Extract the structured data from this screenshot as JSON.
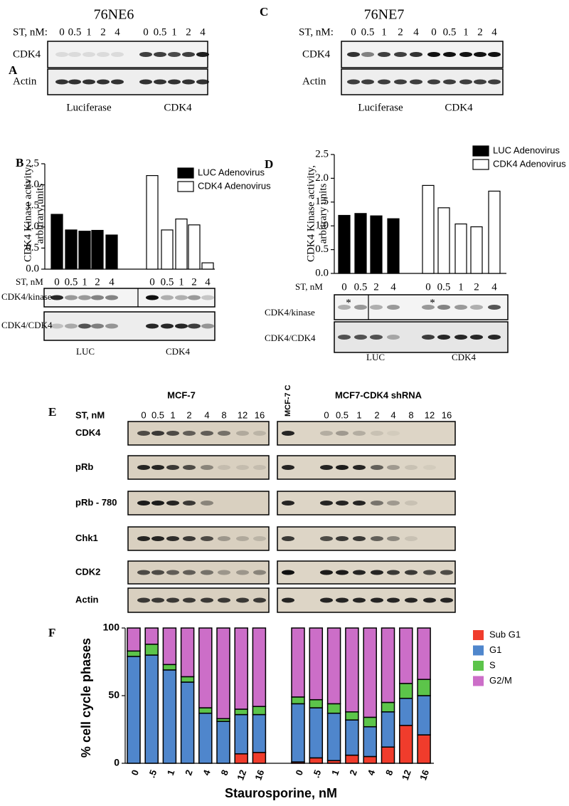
{
  "blots": {
    "A": {
      "label": "A",
      "title": "76NE6",
      "st_label": "ST, nM:",
      "lanes": [
        "0",
        "0.5",
        "1",
        "2",
        "4",
        "0",
        "0.5",
        "1",
        "2",
        "4"
      ],
      "rows": [
        "CDK4",
        "Actin"
      ],
      "groups": [
        "Luciferase",
        "CDK4"
      ]
    },
    "C": {
      "label": "C",
      "title": "76NE7",
      "st_label": "ST, nM:",
      "lanes": [
        "0",
        "0.5",
        "1",
        "2",
        "4",
        "0",
        "0.5",
        "1",
        "2",
        "4"
      ],
      "rows": [
        "CDK4",
        "Actin"
      ],
      "groups": [
        "Luciferase",
        "CDK4"
      ]
    },
    "B": {
      "rows": [
        "CDK4/kinase",
        "CDK4/CDK4"
      ],
      "groups": [
        "LUC",
        "CDK4"
      ]
    },
    "D": {
      "rows": [
        "CDK4/kinase",
        "CDK4/CDK4"
      ],
      "groups": [
        "LUC",
        "CDK4"
      ],
      "marks": [
        "*",
        "*"
      ]
    },
    "E": {
      "label": "E",
      "groups": [
        "MCF-7",
        "MCF7-CDK4 shRNA"
      ],
      "control": "MCF-7 C",
      "st_label": "ST, nM",
      "lanes": [
        "0",
        "0.5",
        "1",
        "2",
        "4",
        "8",
        "12",
        "16"
      ],
      "lanes_right": [
        "0",
        "0.5",
        "1",
        "2",
        "4",
        "8",
        "12",
        "16"
      ],
      "rows": [
        "CDK4",
        "pRb",
        "pRb - 780",
        "Chk1",
        "CDK2",
        "Actin"
      ]
    }
  },
  "chart_data": [
    {
      "type": "bar",
      "label": "B",
      "y_label": [
        "CDK4 Kinase activity,",
        "arbitrary units"
      ],
      "x_label": "ST, nM",
      "categories": [
        "0",
        "0.5",
        "1",
        "2",
        "4",
        "0",
        "0.5",
        "1",
        "2",
        "4"
      ],
      "series": [
        {
          "name": "LUC Adenovirus",
          "color": "#000000",
          "values": [
            1.3,
            0.93,
            0.9,
            0.92,
            0.81,
            null,
            null,
            null,
            null,
            null
          ]
        },
        {
          "name": "CDK4 Adenovirus",
          "color": "#ffffff",
          "values": [
            null,
            null,
            null,
            null,
            null,
            2.22,
            0.93,
            1.19,
            1.05,
            0.15
          ]
        }
      ],
      "ylim": [
        0,
        2.5
      ],
      "yticks": [
        {
          "value": 0,
          "label": "0.0"
        },
        0.5,
        {
          "value": 1,
          "label": "1.0"
        },
        1.5,
        {
          "value": 2,
          "label": "2.0"
        },
        2.5
      ]
    },
    {
      "type": "bar",
      "label": "D",
      "y_label": [
        "CDK4 Kinase activity,",
        "arbitrary units"
      ],
      "x_label": "ST, nM",
      "categories": [
        "0",
        "0.5",
        "2",
        "4",
        "0",
        "0.5",
        "1",
        "2",
        "4"
      ],
      "series": [
        {
          "name": "LUC Adenovirus",
          "color": "#000000",
          "values": [
            1.22,
            1.26,
            1.21,
            1.15,
            null,
            null,
            null,
            null,
            null
          ]
        },
        {
          "name": "CDK4 Adenovirus",
          "color": "#ffffff",
          "values": [
            null,
            null,
            null,
            null,
            1.85,
            1.38,
            1.04,
            0.98,
            1.73
          ]
        }
      ],
      "ylim": [
        0,
        2.5
      ],
      "yticks": [
        {
          "value": 0,
          "label": "0.0"
        },
        0.5,
        {
          "value": 1,
          "label": "1.0"
        },
        1.5,
        {
          "value": 2,
          "label": "2.0"
        },
        2.5
      ]
    },
    {
      "type": "stacked_bar",
      "label": "F",
      "y_label": "% cell cycle phases",
      "x_label": "Staurosporine, nM",
      "categories": [
        "0",
        ".5",
        "1",
        "2",
        "4",
        "8",
        "12",
        "16",
        "0",
        ".5",
        "1",
        "2",
        "4",
        "8",
        "12",
        "16"
      ],
      "series": [
        {
          "name": "Sub G1",
          "color": "#f03c2c",
          "values": [
            0,
            0,
            0,
            0,
            0,
            0,
            7,
            8,
            1,
            4,
            2,
            6,
            5,
            12,
            28,
            21
          ]
        },
        {
          "name": "G1",
          "color": "#4f86cc",
          "values": [
            79,
            80,
            69,
            60,
            37,
            31,
            29,
            28,
            43,
            37,
            35,
            26,
            22,
            26,
            20,
            29
          ]
        },
        {
          "name": "S",
          "color": "#5cc44a",
          "values": [
            4,
            8,
            4,
            4,
            4,
            2,
            4,
            6,
            5,
            6,
            7,
            6,
            7,
            7,
            11,
            12
          ]
        },
        {
          "name": "G2/M",
          "color": "#cc6ec8",
          "values": [
            17,
            12,
            27,
            36,
            59,
            67,
            60,
            58,
            51,
            53,
            56,
            62,
            66,
            55,
            41,
            38
          ]
        }
      ],
      "ylim": [
        0,
        100
      ],
      "yticks": [
        0,
        50,
        100
      ]
    }
  ]
}
